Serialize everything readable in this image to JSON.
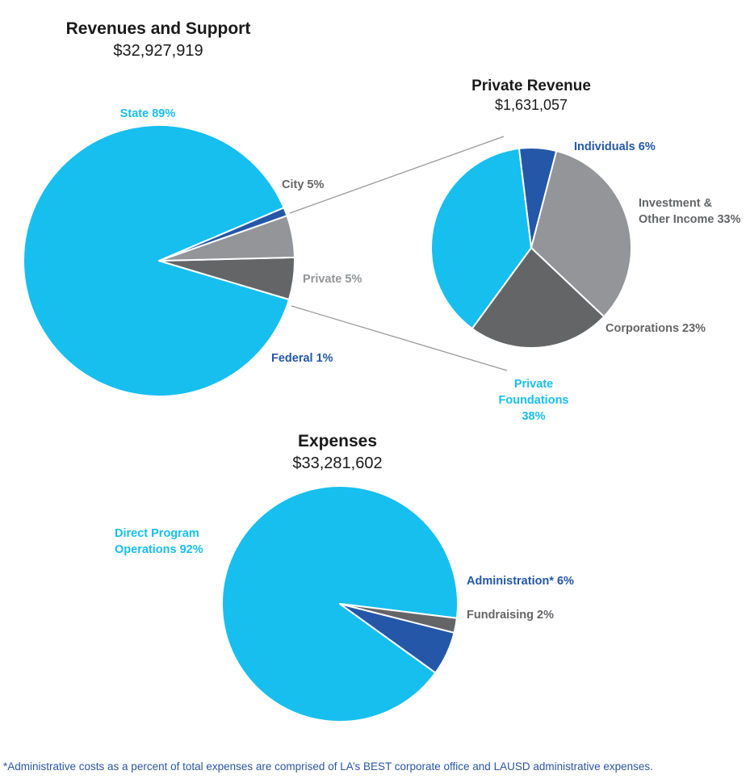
{
  "colors": {
    "cyan": "#17bfef",
    "blue": "#2457a8",
    "dark_gray": "#646567",
    "light_gray": "#939598",
    "connector": "#9a9a9a"
  },
  "chart_data": [
    {
      "type": "pie",
      "title": "Revenues and Support",
      "subtitle": "$32,927,919",
      "slices": [
        {
          "label": "State 89%",
          "value": 89,
          "color": "#17bfef"
        },
        {
          "label": "City 5%",
          "value": 5,
          "color": "#646567"
        },
        {
          "label": "Private 5%",
          "value": 5,
          "color": "#939598"
        },
        {
          "label": "Federal 1%",
          "value": 1,
          "color": "#2457a8"
        }
      ]
    },
    {
      "type": "pie",
      "title": "Private Revenue",
      "subtitle": "$1,631,057",
      "slices": [
        {
          "label": "Individuals 6%",
          "value": 6,
          "color": "#2457a8"
        },
        {
          "label": "Investment & Other Income 33%",
          "value": 33,
          "color": "#939598"
        },
        {
          "label": "Corporations 23%",
          "value": 23,
          "color": "#646567"
        },
        {
          "label": "Private Foundations 38%",
          "value": 38,
          "color": "#17bfef"
        }
      ]
    },
    {
      "type": "pie",
      "title": "Expenses",
      "subtitle": "$33,281,602",
      "slices": [
        {
          "label": "Direct Program Operations 92%",
          "value": 92,
          "color": "#17bfef"
        },
        {
          "label": "Administration* 6%",
          "value": 6,
          "color": "#2457a8"
        },
        {
          "label": "Fundraising 2%",
          "value": 2,
          "color": "#646567"
        }
      ]
    }
  ],
  "footnote": "*Administrative costs as a percent of total expenses are comprised of LA’s BEST corporate office and LAUSD administrative expenses."
}
